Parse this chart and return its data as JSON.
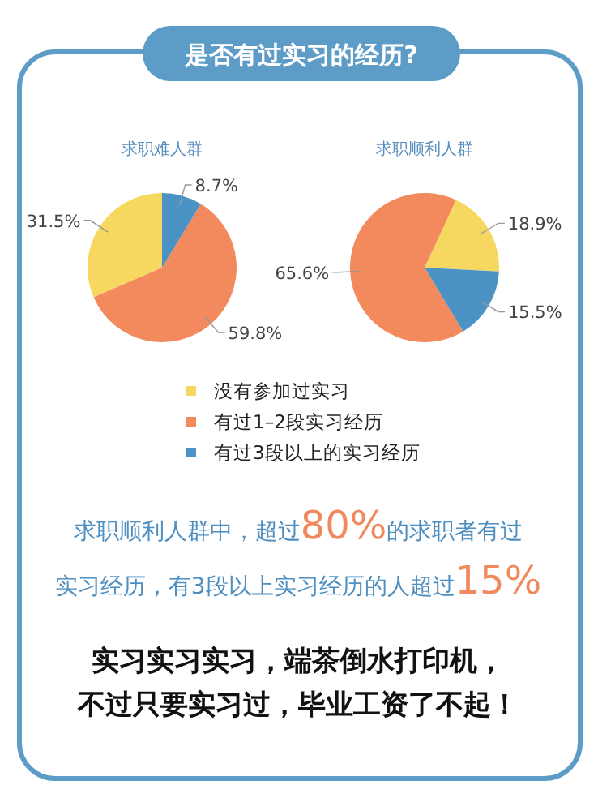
{
  "chart_data": [
    {
      "type": "pie",
      "title": "是否有过实习的经历?",
      "subtitle": "求职难人群",
      "categories": [
        "没有参加过实习",
        "有过1–2段实习经历",
        "有过3段以上的实习经历"
      ],
      "values": [
        31.5,
        59.8,
        8.7
      ],
      "colors": [
        "#f6d860",
        "#f38a5e",
        "#4b92c5"
      ],
      "value_labels": [
        "31.5%",
        "59.8%",
        "8.7%"
      ],
      "legend": "bottom"
    },
    {
      "type": "pie",
      "subtitle": "求职顺利人群",
      "values": [
        18.9,
        65.6,
        15.5
      ],
      "colors": [
        "#f6d860",
        "#f38a5e",
        "#4b92c5"
      ],
      "value_labels": [
        "18.9%",
        "65.6%",
        "15.5%"
      ],
      "annotations": [
        "求职顺利人群中，超过80%的求职者有过",
        "实习经历，有3段以上实习经历的人超过15%",
        "实习实习实习，端茶倒水打印机，",
        "不过只要实习过，毕业工资了不起！"
      ]
    }
  ]
}
